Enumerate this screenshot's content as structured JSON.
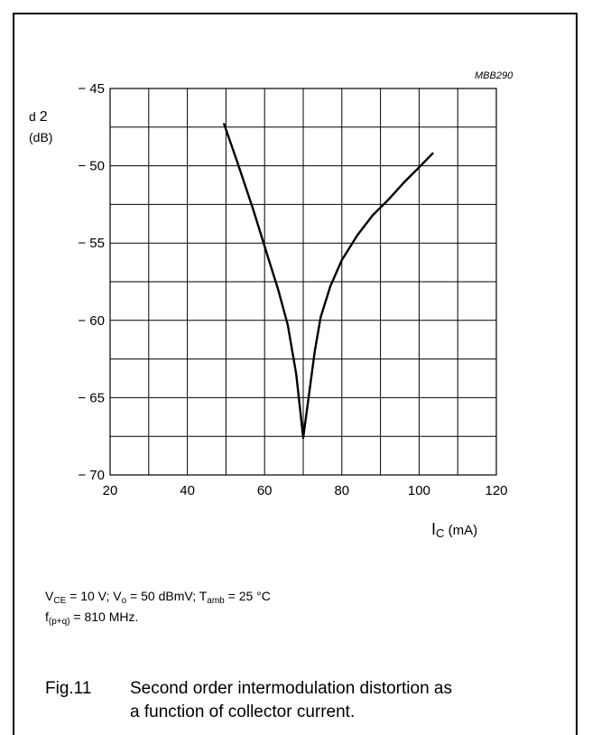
{
  "figure_code": "MBB290",
  "y_axis": {
    "symbol": "d",
    "subscript": "2",
    "unit": "(dB)"
  },
  "x_axis": {
    "symbol": "I",
    "subscript": "C",
    "unit": "(mA)"
  },
  "conditions": {
    "line1": [
      {
        "t": "V"
      },
      {
        "s": "CE"
      },
      {
        "t": " = 10 V; V"
      },
      {
        "s": "o"
      },
      {
        "t": " = 50 dBmV; T"
      },
      {
        "s": "amb"
      },
      {
        "t": " = 25 °C"
      }
    ],
    "line2": [
      {
        "t": "f"
      },
      {
        "s": "(p+q)"
      },
      {
        "t": " = 810 MHz."
      }
    ]
  },
  "caption": {
    "number": "Fig.11",
    "line1": "Second order intermodulation distortion as",
    "line2": "a function of collector current."
  },
  "chart_data": {
    "type": "line",
    "title": "",
    "xlabel": "I_C (mA)",
    "ylabel": "d2 (dB)",
    "xlim": [
      20,
      120
    ],
    "ylim": [
      -70,
      -45
    ],
    "x_ticks": [
      20,
      40,
      60,
      80,
      100,
      120
    ],
    "x_tick_labels": [
      "20",
      "40",
      "60",
      "80",
      "100",
      "120"
    ],
    "y_ticks": [
      -45,
      -50,
      -55,
      -60,
      -65,
      -70
    ],
    "y_tick_labels": [
      "− 45",
      "− 50",
      "− 55",
      "− 60",
      "− 65",
      "− 70"
    ],
    "grid": true,
    "grid_x_step": 10,
    "grid_y_step": 2.5,
    "series": [
      {
        "x": [
          49.5,
          53,
          57,
          60.5,
          63.5,
          66,
          68.2,
          70,
          71.5,
          73,
          74.5,
          77,
          80,
          84,
          88,
          92,
          96,
          100,
          103.5
        ],
        "y": [
          -47.3,
          -49.8,
          -52.8,
          -55.6,
          -58.0,
          -60.3,
          -63.5,
          -67.6,
          -64.8,
          -62.0,
          -59.8,
          -57.8,
          -56.1,
          -54.5,
          -53.2,
          -52.2,
          -51.1,
          -50.1,
          -49.2
        ]
      }
    ]
  }
}
